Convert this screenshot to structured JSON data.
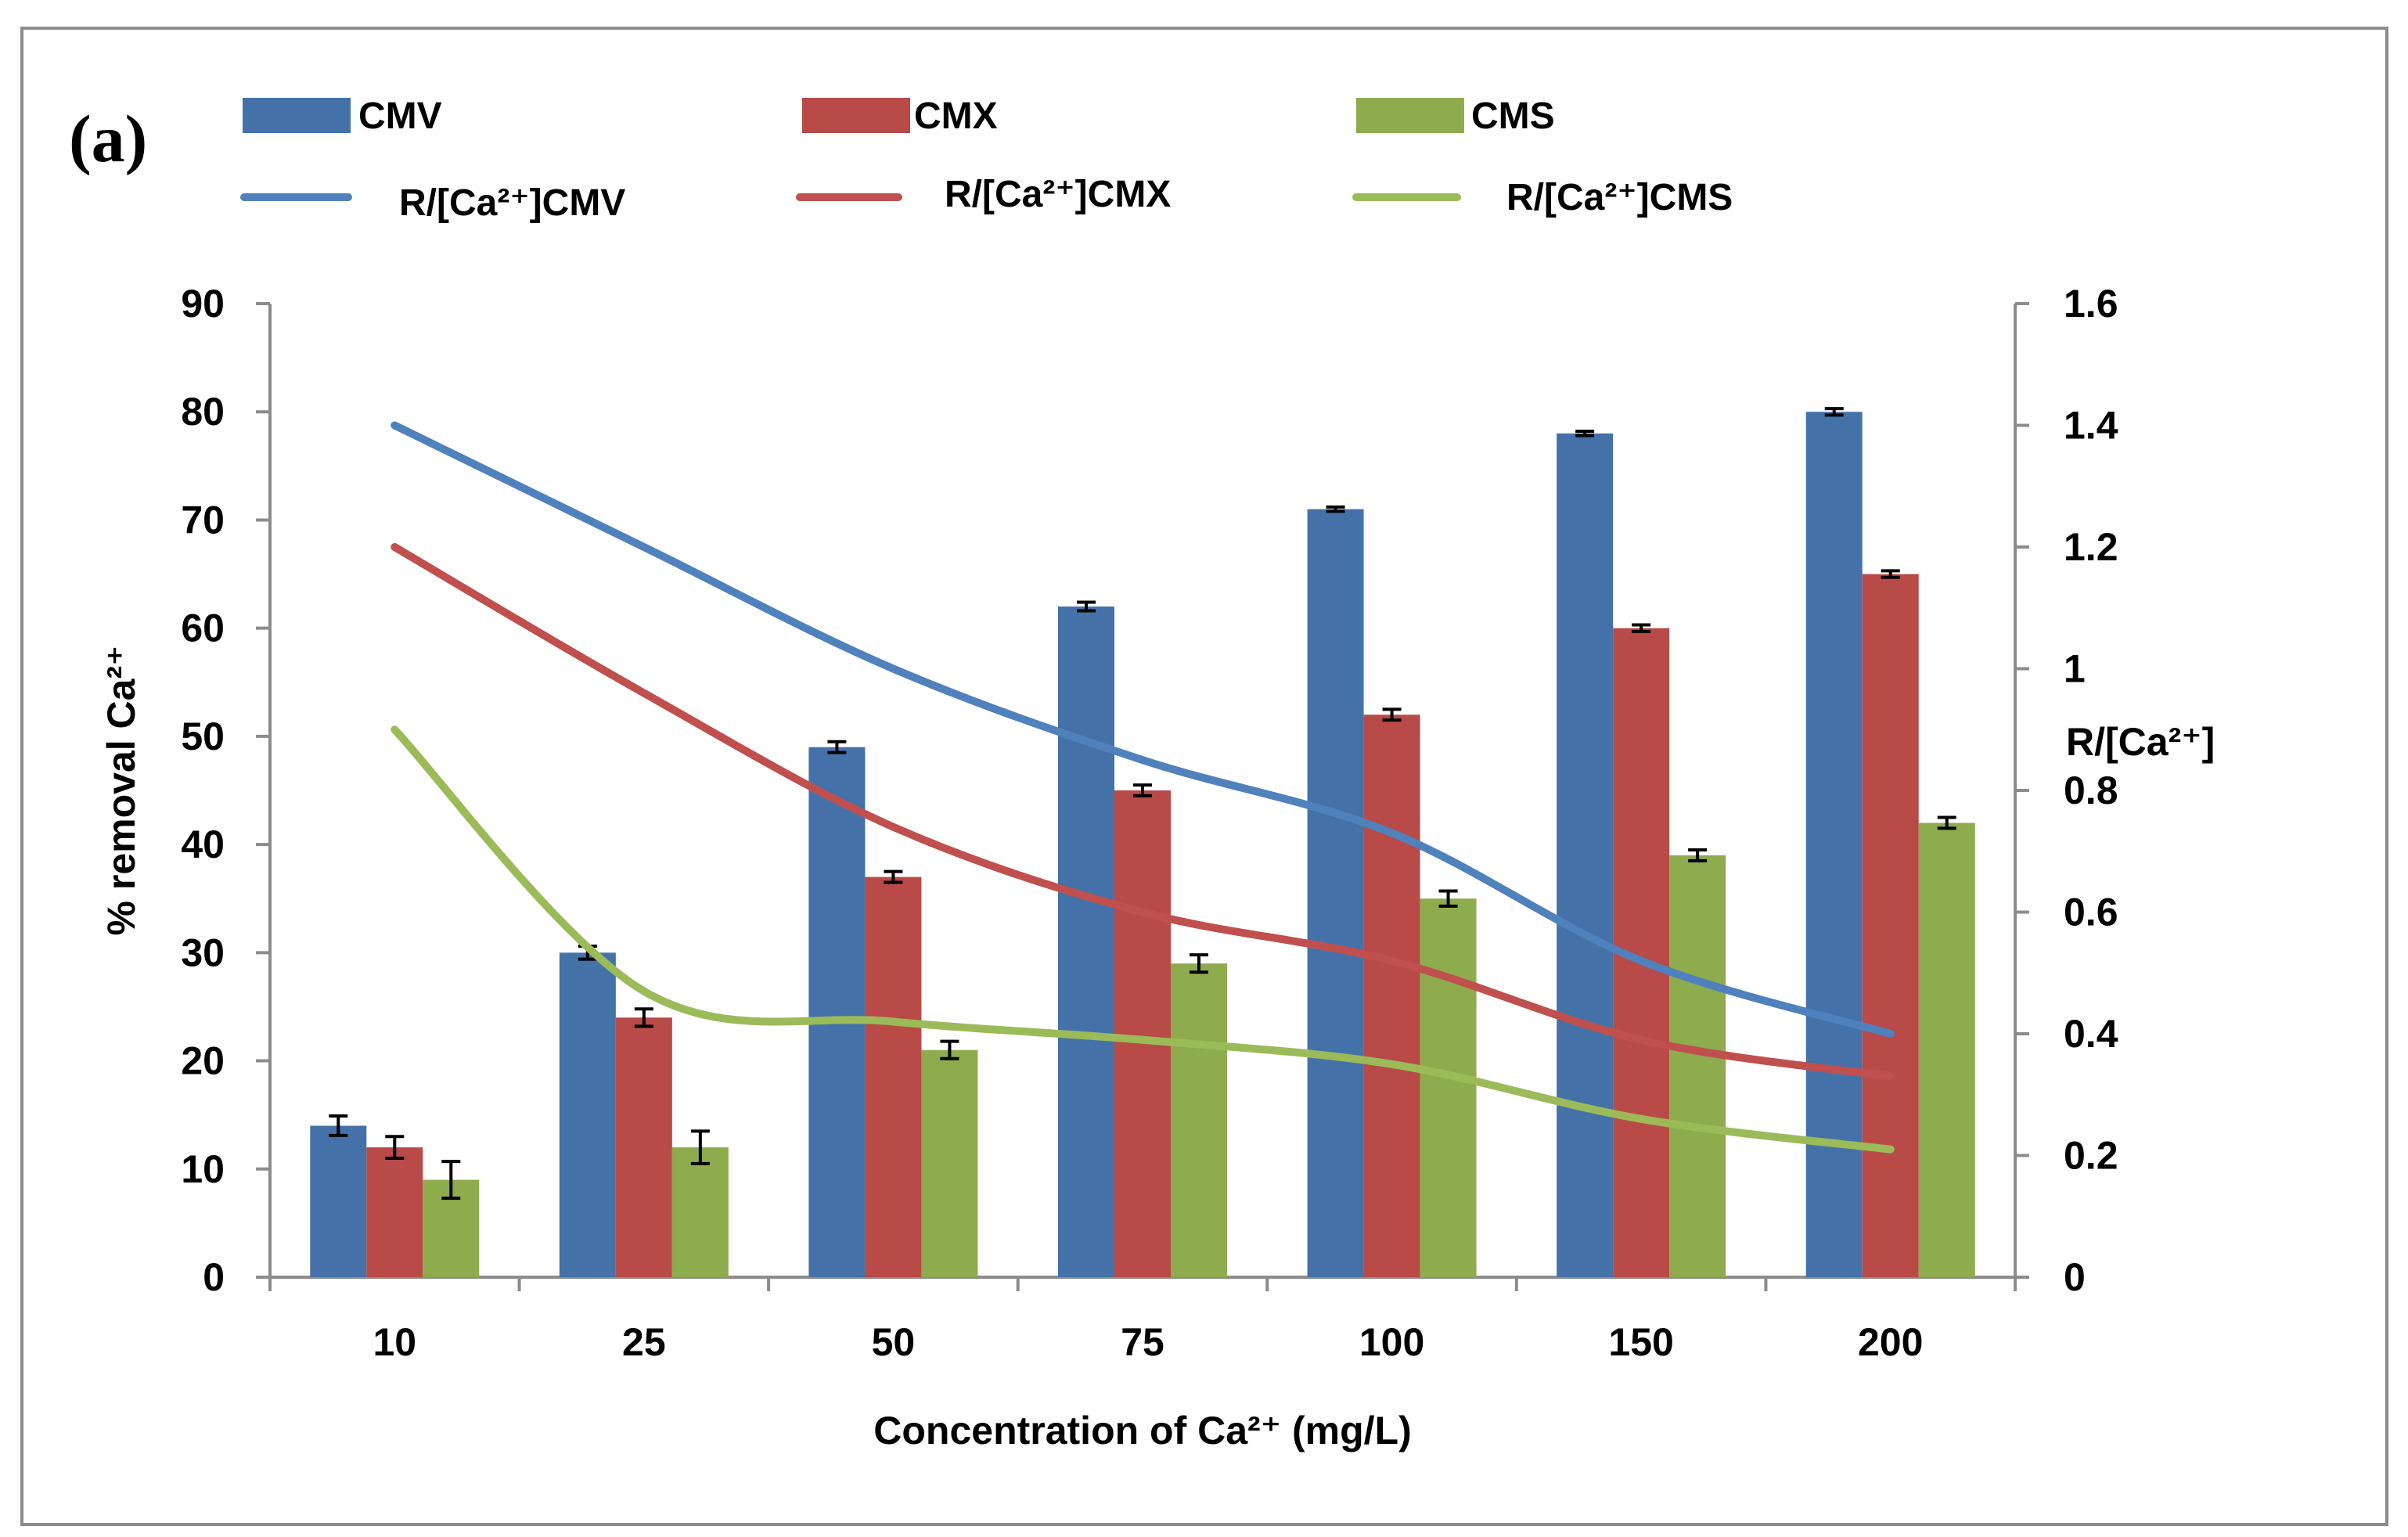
{
  "chart_data": {
    "type": "bar",
    "panel_label": "(a)",
    "categories": [
      "10",
      "25",
      "50",
      "75",
      "100",
      "150",
      "200"
    ],
    "xlabel": "Concentration of Ca²⁺ (mg/L)",
    "ylabel": "% removal Ca²⁺",
    "ylabel_right": "R/[Ca²⁺]",
    "ylim": [
      0,
      90
    ],
    "ylim_right": [
      0,
      1.6
    ],
    "yticks": [
      "0",
      "10",
      "20",
      "30",
      "40",
      "50",
      "60",
      "70",
      "80",
      "90"
    ],
    "yticks_right": [
      "0",
      "0.2",
      "0.4",
      "0.6",
      "0.8",
      "1",
      "1.2",
      "1.4",
      "1.6"
    ],
    "legend_position": "top",
    "series": [
      {
        "name": "CMV",
        "kind": "bar",
        "axis": "left",
        "color": "#4472a8",
        "values": [
          14,
          30,
          49,
          62,
          71,
          78,
          80
        ],
        "errors": [
          0.9,
          0.6,
          0.5,
          0.4,
          0.2,
          0.2,
          0.3
        ]
      },
      {
        "name": "CMX",
        "kind": "bar",
        "axis": "left",
        "color": "#b84a47",
        "values": [
          12,
          24,
          37,
          45,
          52,
          60,
          65
        ],
        "errors": [
          1.0,
          0.8,
          0.5,
          0.5,
          0.5,
          0.3,
          0.3
        ]
      },
      {
        "name": "CMS",
        "kind": "bar",
        "axis": "left",
        "color": "#8eac4e",
        "values": [
          9,
          12,
          21,
          29,
          35,
          39,
          42
        ],
        "errors": [
          1.7,
          1.5,
          0.8,
          0.8,
          0.7,
          0.5,
          0.5
        ]
      },
      {
        "name": "R/[Ca²⁺]CMV",
        "kind": "line",
        "axis": "right",
        "color": "#4f81bd",
        "values": [
          1.4,
          1.2,
          1.0,
          0.85,
          0.73,
          0.52,
          0.4
        ]
      },
      {
        "name": "R/[Ca²⁺]CMX",
        "kind": "line",
        "axis": "right",
        "color": "#c0504d",
        "values": [
          1.2,
          0.96,
          0.74,
          0.6,
          0.52,
          0.39,
          0.33
        ]
      },
      {
        "name": "R/[Ca²⁺]CMS",
        "kind": "line",
        "axis": "right",
        "color": "#9bbb59",
        "values": [
          0.9,
          0.47,
          0.42,
          0.39,
          0.35,
          0.26,
          0.21
        ]
      }
    ]
  }
}
